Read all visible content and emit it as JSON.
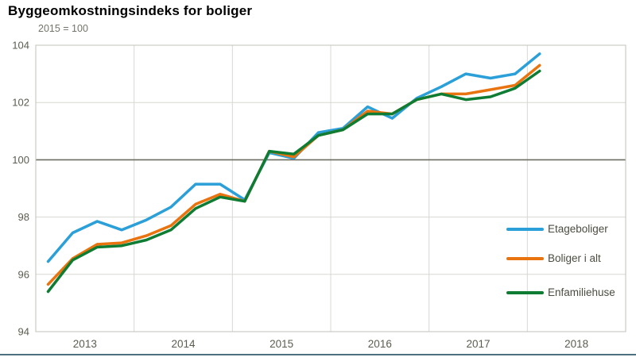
{
  "title": "Byggeomkostningsindeks for boliger",
  "subtitle": "2015 = 100",
  "colors": {
    "series_blue": "#2a9fd8",
    "series_orange": "#e9730f",
    "series_green": "#0e7d33",
    "grid": "#d8d8d2",
    "plot_border": "#c2c2ba",
    "reference_line": "#6c6c60",
    "tick_text": "#5c5c50",
    "bottom_rule": "#4d6f7f"
  },
  "chart_data": {
    "type": "line",
    "title": "Byggeomkostningsindeks for boliger",
    "subtitle": "2015 = 100",
    "x_labels": [
      "2013K1",
      "2013K2",
      "2013K3",
      "2013K4",
      "2014K1",
      "2014K2",
      "2014K3",
      "2014K4",
      "2015K1",
      "2015K2",
      "2015K3",
      "2015K4",
      "2016K1",
      "2016K2",
      "2016K3",
      "2016K4",
      "2017K1",
      "2017K2",
      "2017K3",
      "2017K4",
      "2018K1"
    ],
    "xtick_labels": [
      "2013",
      "2014",
      "2015",
      "2016",
      "2017",
      "2018"
    ],
    "xlim": [
      2013,
      2019
    ],
    "ylim": [
      94,
      104
    ],
    "yticks": [
      94,
      96,
      98,
      100,
      102,
      104
    ],
    "reference_line": 100,
    "grid": true,
    "legend_position": "inside-right",
    "series": [
      {
        "name": "Etageboliger",
        "color": "#2a9fd8",
        "values": [
          96.45,
          97.45,
          97.85,
          97.55,
          97.9,
          98.35,
          99.15,
          99.15,
          98.6,
          100.25,
          100.05,
          100.95,
          101.1,
          101.85,
          101.45,
          102.15,
          102.55,
          103.0,
          102.85,
          103.0,
          103.7
        ]
      },
      {
        "name": "Boliger i alt",
        "color": "#e9730f",
        "values": [
          95.65,
          96.55,
          97.05,
          97.1,
          97.35,
          97.7,
          98.45,
          98.8,
          98.55,
          100.3,
          100.1,
          100.85,
          101.05,
          101.7,
          101.6,
          102.1,
          102.3,
          102.3,
          102.45,
          102.6,
          103.3
        ]
      },
      {
        "name": "Enfamiliehuse",
        "color": "#0e7d33",
        "values": [
          95.4,
          96.5,
          96.95,
          97.0,
          97.2,
          97.55,
          98.3,
          98.7,
          98.55,
          100.3,
          100.2,
          100.85,
          101.05,
          101.6,
          101.6,
          102.1,
          102.3,
          102.1,
          102.2,
          102.5,
          103.1
        ]
      }
    ]
  }
}
